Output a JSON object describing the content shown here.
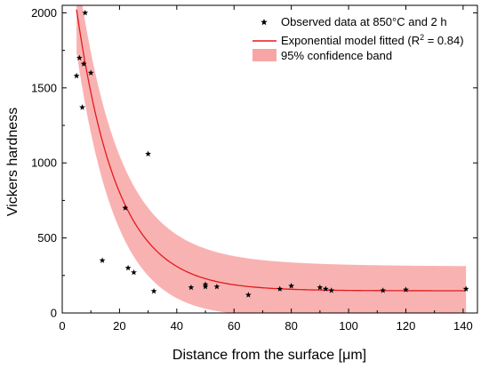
{
  "chart_data": {
    "type": "scatter",
    "xlabel": "Distance from the surface [μm]",
    "ylabel": "Vickers hardness",
    "xlim": [
      0,
      145
    ],
    "ylim": [
      0,
      2050
    ],
    "xticks": [
      0,
      20,
      40,
      60,
      80,
      100,
      120,
      140
    ],
    "yticks": [
      0,
      500,
      1000,
      1500,
      2000
    ],
    "grid": false,
    "legend_position": "top-right",
    "series": [
      {
        "name": "Observed data at 850°C and 2 h",
        "kind": "scatter",
        "marker": "star",
        "color": "#000000",
        "points": [
          [
            5,
            1580
          ],
          [
            6,
            1700
          ],
          [
            7,
            1370
          ],
          [
            7.5,
            1660
          ],
          [
            8,
            2000
          ],
          [
            10,
            1600
          ],
          [
            14,
            350
          ],
          [
            22,
            700
          ],
          [
            23,
            300
          ],
          [
            25,
            270
          ],
          [
            30,
            1060
          ],
          [
            32,
            145
          ],
          [
            45,
            170
          ],
          [
            50,
            175
          ],
          [
            50,
            190
          ],
          [
            54,
            175
          ],
          [
            65,
            120
          ],
          [
            76,
            160
          ],
          [
            80,
            180
          ],
          [
            90,
            170
          ],
          [
            92,
            160
          ],
          [
            94,
            150
          ],
          [
            112,
            150
          ],
          [
            120,
            155
          ],
          [
            141,
            160
          ]
        ]
      },
      {
        "name": "Exponential model fitted",
        "legend_label": "Exponential model fitted (R",
        "legend_sup": "2",
        "legend_tail": " = 0.84)",
        "kind": "line",
        "color": "#e31a1c",
        "model": {
          "asymptote": 148,
          "amplitude": 2657,
          "decay_length": 14.3
        },
        "x_range": [
          5,
          141
        ]
      },
      {
        "name": "95% confidence band",
        "kind": "band",
        "color": "#f8a5a5",
        "x_range": [
          5,
          141
        ],
        "band_offset_near": 300,
        "band_offset_far": 160,
        "band_ylim_cap": 2050
      }
    ]
  }
}
